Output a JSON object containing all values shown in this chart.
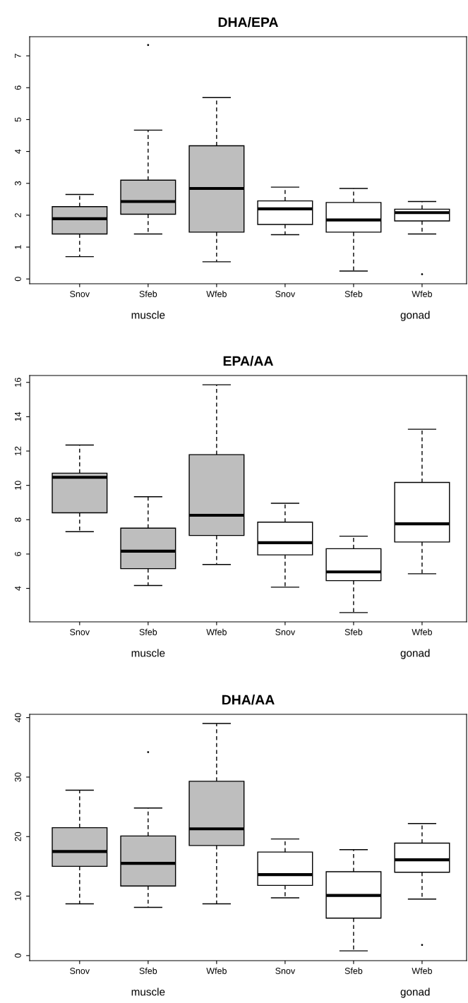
{
  "chart_data": [
    {
      "type": "box",
      "title": "DHA/EPA",
      "categories": [
        "Snov",
        "Sfeb",
        "Wfeb",
        "Snov",
        "Sfeb",
        "Wfeb"
      ],
      "colors": [
        "#bebebe",
        "#bebebe",
        "#bebebe",
        "#ffffff",
        "#ffffff",
        "#ffffff"
      ],
      "ylim": [
        -0.15,
        7.6
      ],
      "yticks": [
        0,
        1,
        2,
        3,
        4,
        5,
        6,
        7
      ],
      "grid": false,
      "annotations": [
        "muscle",
        "gonad"
      ],
      "boxes": [
        {
          "low": 0.7,
          "q1": 1.41,
          "median": 1.89,
          "q3": 2.27,
          "high": 2.65
        },
        {
          "low": 1.41,
          "q1": 2.03,
          "median": 2.43,
          "q3": 3.1,
          "high": 4.67,
          "outliers": [
            7.34
          ]
        },
        {
          "low": 0.54,
          "q1": 1.47,
          "median": 2.84,
          "q3": 4.18,
          "high": 5.69
        },
        {
          "low": 1.39,
          "q1": 1.71,
          "median": 2.2,
          "q3": 2.45,
          "high": 2.88
        },
        {
          "low": 0.25,
          "q1": 1.47,
          "median": 1.85,
          "q3": 2.4,
          "high": 2.84
        },
        {
          "low": 1.41,
          "q1": 1.82,
          "median": 2.08,
          "q3": 2.19,
          "high": 2.43,
          "outliers": [
            0.15
          ]
        }
      ]
    },
    {
      "type": "box",
      "title": "EPA/AA",
      "categories": [
        "Snov",
        "Sfeb",
        "Wfeb",
        "Snov",
        "Sfeb",
        "Wfeb"
      ],
      "colors": [
        "#bebebe",
        "#bebebe",
        "#bebebe",
        "#ffffff",
        "#ffffff",
        "#ffffff"
      ],
      "ylim": [
        2.05,
        16.4
      ],
      "yticks": [
        4,
        6,
        8,
        10,
        12,
        14,
        16
      ],
      "grid": false,
      "annotations": [
        "muscle",
        "gonad"
      ],
      "boxes": [
        {
          "low": 7.3,
          "q1": 8.4,
          "median": 10.47,
          "q3": 10.71,
          "high": 12.35
        },
        {
          "low": 4.17,
          "q1": 5.15,
          "median": 6.17,
          "q3": 7.51,
          "high": 9.34
        },
        {
          "low": 5.39,
          "q1": 7.08,
          "median": 8.26,
          "q3": 11.79,
          "high": 15.86
        },
        {
          "low": 4.07,
          "q1": 5.95,
          "median": 6.66,
          "q3": 7.86,
          "high": 8.96
        },
        {
          "low": 2.59,
          "q1": 4.45,
          "median": 4.96,
          "q3": 6.31,
          "high": 7.04
        },
        {
          "low": 4.85,
          "q1": 6.7,
          "median": 7.76,
          "q3": 10.17,
          "high": 13.27
        }
      ]
    },
    {
      "type": "box",
      "title": "DHA/AA",
      "categories": [
        "Snov",
        "Sfeb",
        "Wfeb",
        "Snov",
        "Sfeb",
        "Wfeb"
      ],
      "colors": [
        "#bebebe",
        "#bebebe",
        "#bebebe",
        "#ffffff",
        "#ffffff",
        "#ffffff"
      ],
      "ylim": [
        -0.85,
        40.55
      ],
      "yticks": [
        0,
        10,
        20,
        30,
        40
      ],
      "grid": false,
      "annotations": [
        "muscle",
        "gonad"
      ],
      "boxes": [
        {
          "low": 8.7,
          "q1": 15.0,
          "median": 17.5,
          "q3": 21.5,
          "high": 27.8
        },
        {
          "low": 8.1,
          "q1": 11.7,
          "median": 15.5,
          "q3": 20.1,
          "high": 24.8,
          "outliers": [
            34.2
          ]
        },
        {
          "low": 8.7,
          "q1": 18.5,
          "median": 21.3,
          "q3": 29.3,
          "high": 39.0
        },
        {
          "low": 9.7,
          "q1": 11.8,
          "median": 13.6,
          "q3": 17.4,
          "high": 19.6
        },
        {
          "low": 0.8,
          "q1": 6.3,
          "median": 10.1,
          "q3": 14.1,
          "high": 17.8
        },
        {
          "low": 9.5,
          "q1": 14.0,
          "median": 16.1,
          "q3": 18.9,
          "high": 22.2,
          "outliers": [
            1.8
          ]
        }
      ]
    }
  ]
}
